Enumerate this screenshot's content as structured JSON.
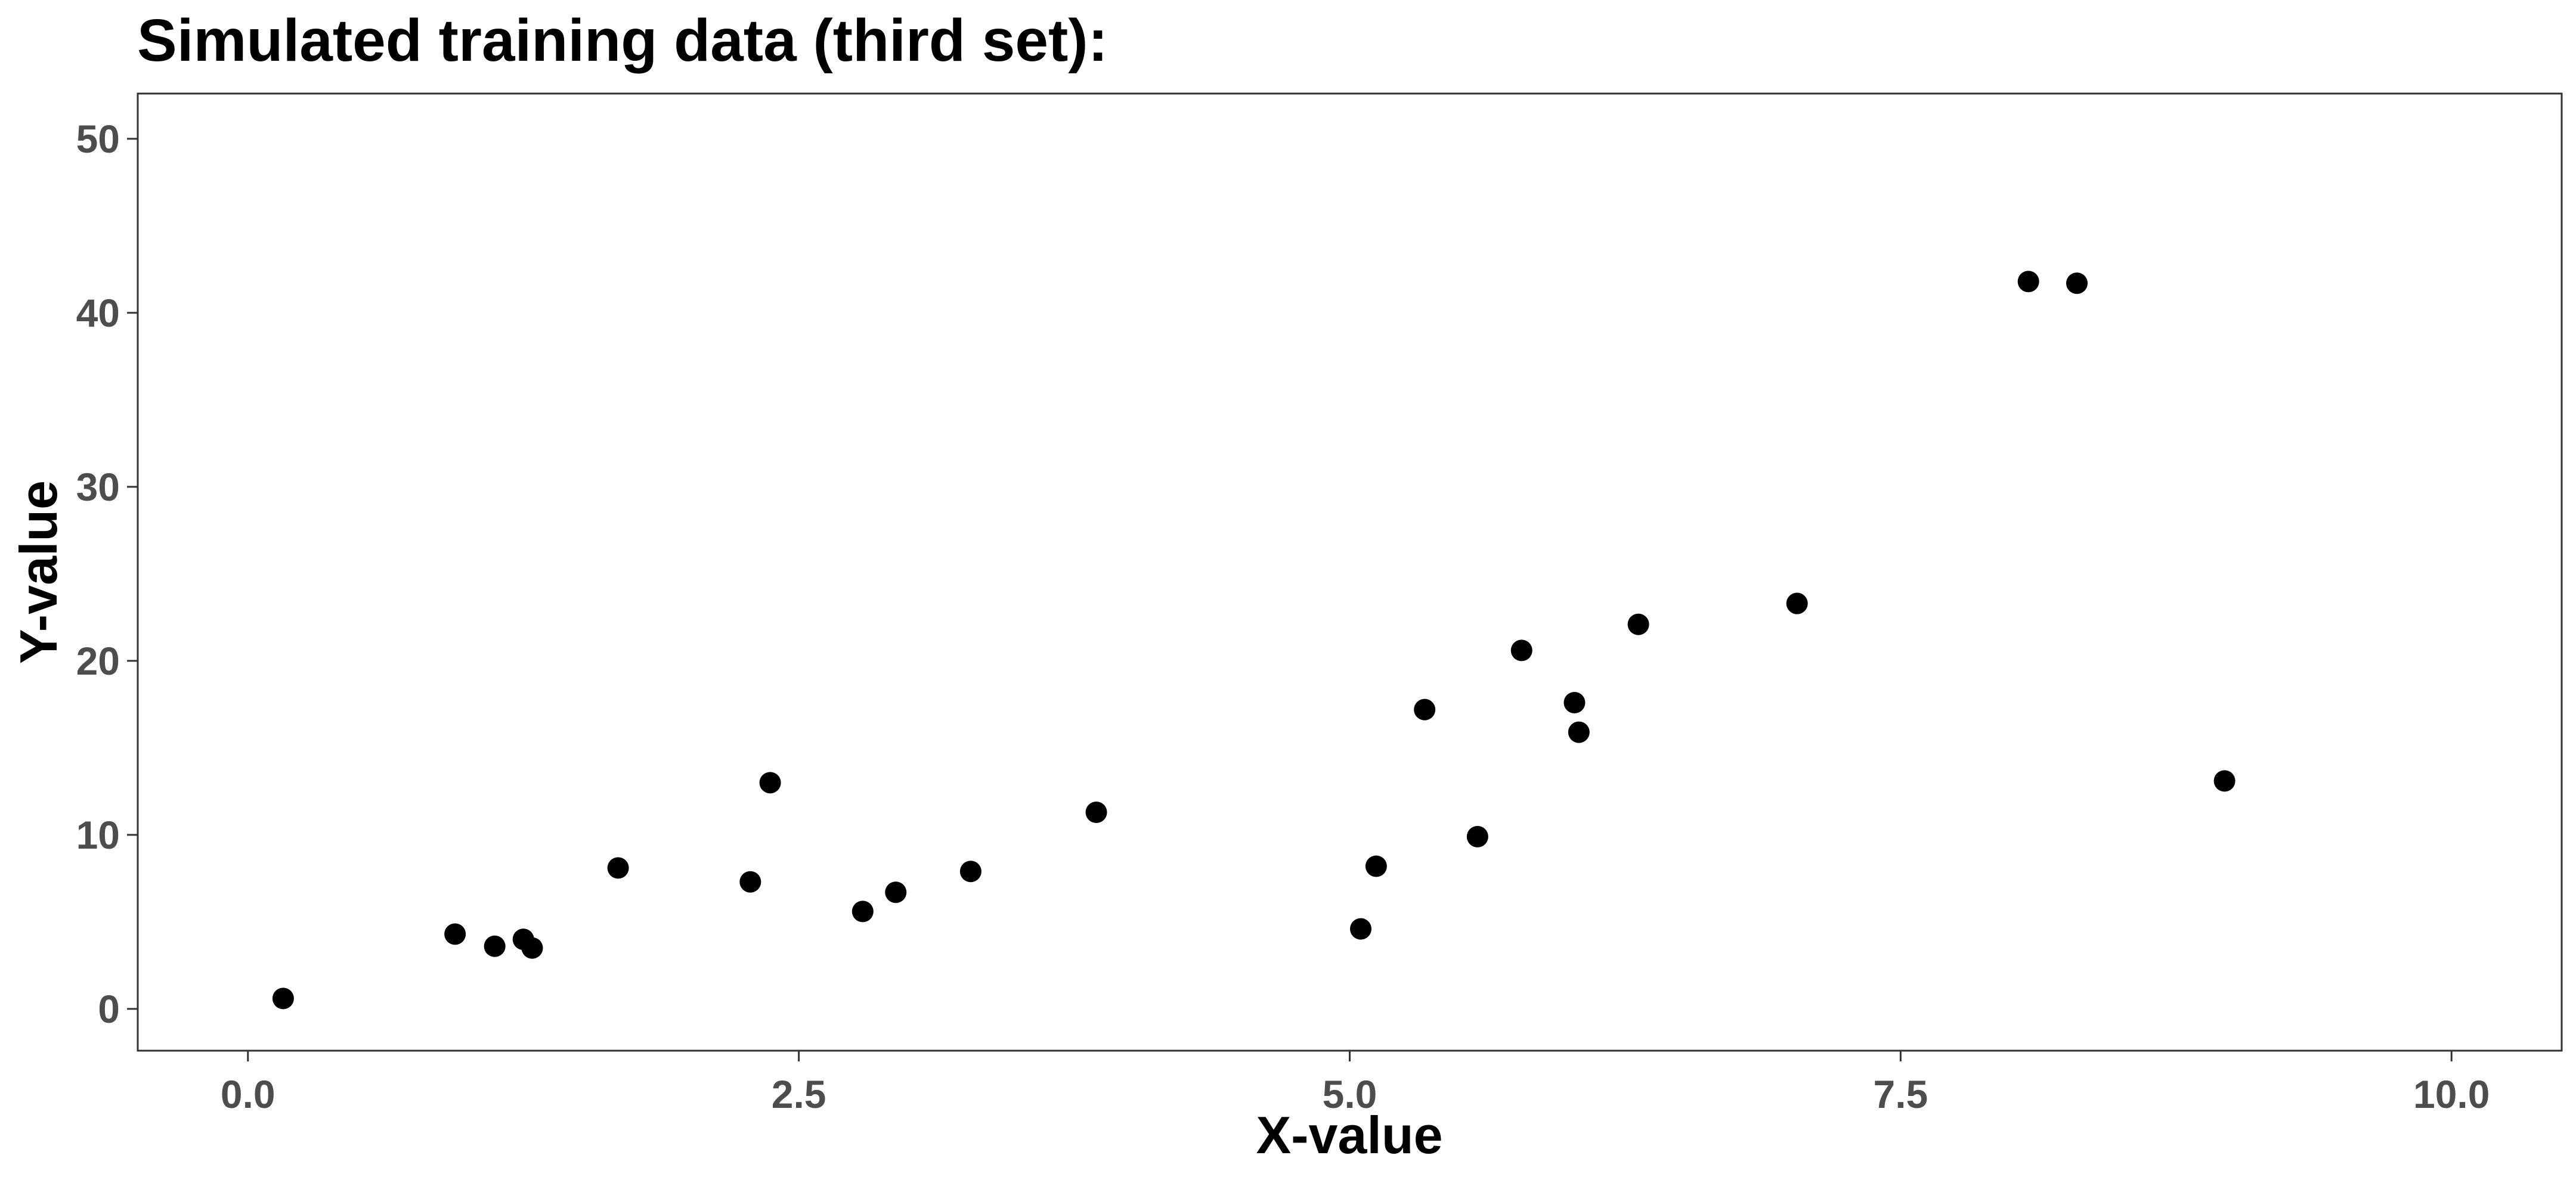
{
  "chart_data": {
    "type": "scatter",
    "title": "Simulated training data (third set):",
    "xlabel": "X-value",
    "ylabel": "Y-value",
    "xlim": [
      -0.5,
      10.5
    ],
    "ylim": [
      -2.4,
      52.6
    ],
    "xticks": [
      0.0,
      2.5,
      5.0,
      7.5,
      10.0
    ],
    "xtick_labels": [
      "0.0",
      "2.5",
      "5.0",
      "7.5",
      "10.0"
    ],
    "yticks": [
      0,
      10,
      20,
      30,
      40,
      50
    ],
    "ytick_labels": [
      "0",
      "10",
      "20",
      "30",
      "40",
      "50"
    ],
    "grid": false,
    "point_color": "#000000",
    "series": [
      {
        "points": [
          {
            "x": 0.16,
            "y": 0.6
          },
          {
            "x": 0.94,
            "y": 4.3
          },
          {
            "x": 1.12,
            "y": 3.6
          },
          {
            "x": 1.25,
            "y": 4.0
          },
          {
            "x": 1.29,
            "y": 3.5
          },
          {
            "x": 1.68,
            "y": 8.1
          },
          {
            "x": 2.28,
            "y": 7.3
          },
          {
            "x": 2.37,
            "y": 13.0
          },
          {
            "x": 2.79,
            "y": 5.6
          },
          {
            "x": 2.94,
            "y": 6.7
          },
          {
            "x": 3.28,
            "y": 7.9
          },
          {
            "x": 3.85,
            "y": 11.3
          },
          {
            "x": 5.05,
            "y": 4.6
          },
          {
            "x": 5.12,
            "y": 8.2
          },
          {
            "x": 5.34,
            "y": 17.2
          },
          {
            "x": 5.58,
            "y": 9.9
          },
          {
            "x": 5.78,
            "y": 20.6
          },
          {
            "x": 6.02,
            "y": 17.6
          },
          {
            "x": 6.04,
            "y": 15.9
          },
          {
            "x": 6.31,
            "y": 22.1
          },
          {
            "x": 7.03,
            "y": 23.3
          },
          {
            "x": 8.08,
            "y": 41.8
          },
          {
            "x": 8.3,
            "y": 41.7
          },
          {
            "x": 8.97,
            "y": 13.1
          }
        ]
      }
    ]
  }
}
